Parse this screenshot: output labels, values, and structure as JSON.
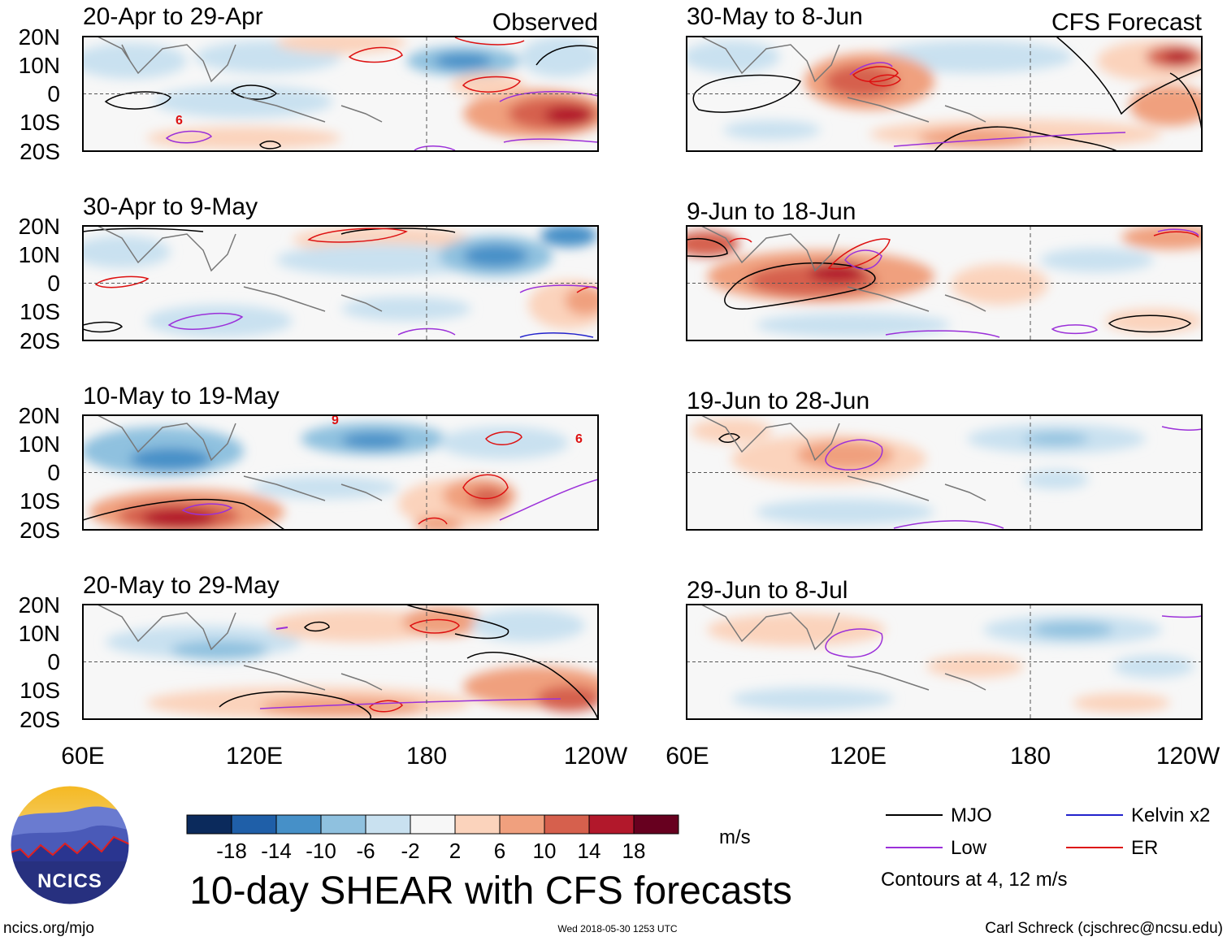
{
  "figure": {
    "title": "10-day SHEAR with CFS forecasts",
    "observed_label": "Observed",
    "forecast_label": "CFS Forecast",
    "lat_labels": [
      "20N",
      "10N",
      "0",
      "10S",
      "20S"
    ],
    "lon_labels": [
      "60E",
      "120E",
      "180",
      "120W"
    ],
    "units": "m/s",
    "contour_note": "Contours at 4, 12 m/s",
    "website": "ncics.org/mjo",
    "timestamp": "Wed 2018-05-30 1253 UTC",
    "author": "Carl Schreck (cjschrec@ncsu.edu)",
    "logo_text": "NCICS"
  },
  "panels": [
    {
      "id": "obs-1",
      "title": "20-Apr to 29-Apr",
      "column": "observed"
    },
    {
      "id": "obs-2",
      "title": "30-Apr to 9-May",
      "column": "observed"
    },
    {
      "id": "obs-3",
      "title": "10-May to 19-May",
      "column": "observed"
    },
    {
      "id": "obs-4",
      "title": "20-May to 29-May",
      "column": "observed"
    },
    {
      "id": "fc-1",
      "title": "30-May to 8-Jun",
      "column": "forecast"
    },
    {
      "id": "fc-2",
      "title": "9-Jun to 18-Jun",
      "column": "forecast"
    },
    {
      "id": "fc-3",
      "title": "19-Jun to 28-Jun",
      "column": "forecast"
    },
    {
      "id": "fc-4",
      "title": "29-Jun to 8-Jul",
      "column": "forecast"
    }
  ],
  "colorbar": {
    "labels": [
      "-18",
      "-14",
      "-10",
      "-6",
      "-2",
      "2",
      "6",
      "10",
      "14",
      "18"
    ],
    "colors": [
      "#0b2a5c",
      "#1f5fa8",
      "#4690c8",
      "#8fc1df",
      "#c9e1f0",
      "#f7f7f7",
      "#fbd3bc",
      "#f0a07e",
      "#d6604d",
      "#b2182b",
      "#67001f"
    ]
  },
  "legend": [
    {
      "label": "MJO",
      "color": "#000000"
    },
    {
      "label": "Kelvin x2",
      "color": "#2222cc"
    },
    {
      "label": "Low",
      "color": "#9b30d9"
    },
    {
      "label": "ER",
      "color": "#dd1111"
    }
  ]
}
